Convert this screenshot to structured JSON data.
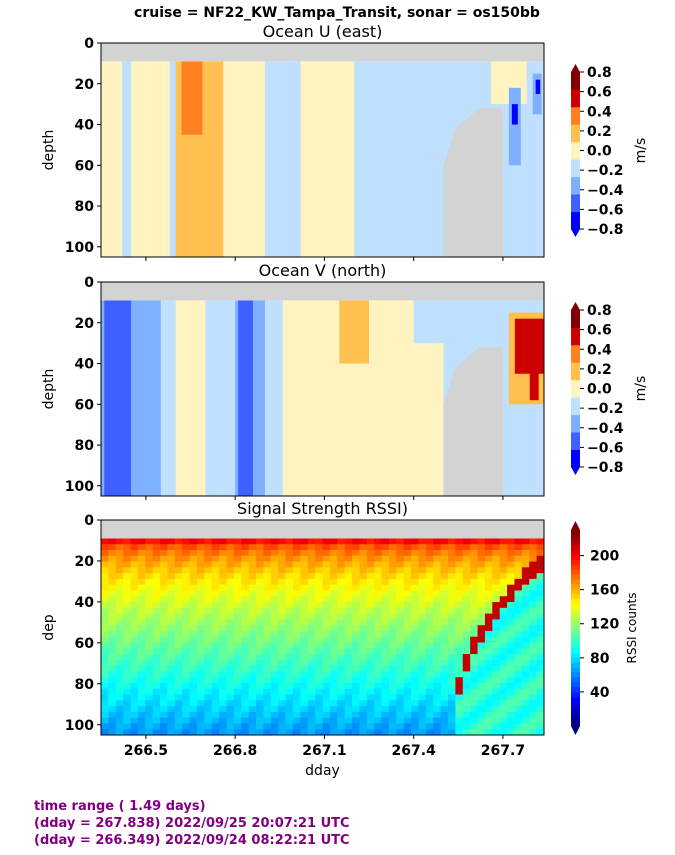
{
  "suptitle": "cruise = NF22_KW_Tampa_Transit,  sonar = os150bb",
  "footer": {
    "line1": "time range ( 1.49 days)",
    "line2": "(dday = 267.838) 2022/09/25 20:07:21 UTC",
    "line3": "(dday = 266.349) 2022/09/24 08:22:21 UTC"
  },
  "colors": {
    "footer_text": "#800080",
    "nodata": "#d3d3d3",
    "vel_levels": [
      "#0000ff",
      "#3f5fff",
      "#7fb0ff",
      "#bfe0ff",
      "#fff3c0",
      "#ffc050",
      "#ff8020",
      "#cc0000",
      "#800000"
    ]
  },
  "chart_data": [
    {
      "type": "heatmap",
      "title": "Ocean U (east)",
      "xlabel": "",
      "ylabel": "depth",
      "xlim": [
        266.349,
        267.838
      ],
      "ylim": [
        105,
        0
      ],
      "yticks": [
        "0",
        "20",
        "40",
        "60",
        "80",
        "100"
      ],
      "xticks": [
        266.5,
        266.8,
        267.1,
        267.4,
        267.7
      ],
      "colorbar": {
        "label": "m/s",
        "ticks": [
          "0.8",
          "0.6",
          "0.4",
          "0.2",
          "0.0",
          "−0.2",
          "−0.4",
          "−0.6",
          "−0.8"
        ],
        "range": [
          -0.8,
          0.8
        ]
      },
      "nodata_top_depth": 9,
      "nodata_region": {
        "start_dday": 267.5,
        "start_depth": 60,
        "end_depth": 32
      },
      "bands": [
        {
          "x0": 266.349,
          "x1": 266.42,
          "value": 0.1
        },
        {
          "x0": 266.42,
          "x1": 266.45,
          "value": -0.1
        },
        {
          "x0": 266.45,
          "x1": 266.58,
          "value": 0.1
        },
        {
          "x0": 266.58,
          "x1": 266.63,
          "value": -0.1
        },
        {
          "x0": 266.63,
          "x1": 266.7,
          "value": 0.1
        },
        {
          "x0": 266.7,
          "x1": 266.76,
          "value": 0.3
        },
        {
          "x0": 266.76,
          "x1": 266.9,
          "value": 0.1
        },
        {
          "x0": 266.9,
          "x1": 267.02,
          "value": -0.1
        },
        {
          "x0": 267.02,
          "x1": 267.2,
          "value": 0.1
        },
        {
          "x0": 267.2,
          "x1": 267.5,
          "value": -0.1
        },
        {
          "x0": 267.5,
          "x1": 267.838,
          "value": -0.1
        }
      ],
      "patches": [
        {
          "x0": 266.6,
          "x1": 266.73,
          "d0": 9,
          "d1": 105,
          "value": 0.3
        },
        {
          "x0": 266.62,
          "x1": 266.69,
          "d0": 9,
          "d1": 45,
          "value": 0.5
        },
        {
          "x0": 267.66,
          "x1": 267.78,
          "d0": 9,
          "d1": 30,
          "value": 0.1
        },
        {
          "x0": 267.72,
          "x1": 267.76,
          "d0": 22,
          "d1": 60,
          "value": -0.3
        },
        {
          "x0": 267.73,
          "x1": 267.75,
          "d0": 30,
          "d1": 40,
          "value": -0.7
        },
        {
          "x0": 267.8,
          "x1": 267.83,
          "d0": 15,
          "d1": 35,
          "value": -0.3
        },
        {
          "x0": 267.81,
          "x1": 267.825,
          "d0": 18,
          "d1": 25,
          "value": -0.7
        }
      ]
    },
    {
      "type": "heatmap",
      "title": "Ocean V (north)",
      "xlabel": "",
      "ylabel": "depth",
      "xlim": [
        266.349,
        267.838
      ],
      "ylim": [
        105,
        0
      ],
      "yticks": [
        "0",
        "20",
        "40",
        "60",
        "80",
        "100"
      ],
      "xticks": [
        266.5,
        266.8,
        267.1,
        267.4,
        267.7
      ],
      "colorbar": {
        "label": "m/s",
        "ticks": [
          "0.8",
          "0.6",
          "0.4",
          "0.2",
          "0.0",
          "−0.2",
          "−0.4",
          "−0.6",
          "−0.8"
        ],
        "range": [
          -0.8,
          0.8
        ]
      },
      "nodata_top_depth": 9,
      "nodata_region": {
        "start_dday": 267.5,
        "start_depth": 60,
        "end_depth": 32
      },
      "bands": [
        {
          "x0": 266.349,
          "x1": 266.36,
          "value": -0.3
        },
        {
          "x0": 266.36,
          "x1": 266.45,
          "value": -0.5
        },
        {
          "x0": 266.45,
          "x1": 266.55,
          "value": -0.3
        },
        {
          "x0": 266.55,
          "x1": 266.6,
          "value": -0.1
        },
        {
          "x0": 266.6,
          "x1": 266.7,
          "value": 0.1
        },
        {
          "x0": 266.7,
          "x1": 266.8,
          "value": -0.1
        },
        {
          "x0": 266.8,
          "x1": 266.9,
          "value": -0.3
        },
        {
          "x0": 266.9,
          "x1": 266.96,
          "value": -0.1
        },
        {
          "x0": 266.96,
          "x1": 267.5,
          "value": 0.1
        },
        {
          "x0": 267.5,
          "x1": 267.838,
          "value": -0.1
        }
      ],
      "patches": [
        {
          "x0": 266.81,
          "x1": 266.86,
          "d0": 9,
          "d1": 105,
          "value": -0.5
        },
        {
          "x0": 267.15,
          "x1": 267.25,
          "d0": 9,
          "d1": 40,
          "value": 0.3
        },
        {
          "x0": 267.4,
          "x1": 267.5,
          "d0": 9,
          "d1": 30,
          "value": -0.1
        },
        {
          "x0": 267.72,
          "x1": 267.838,
          "d0": 15,
          "d1": 60,
          "value": 0.3
        },
        {
          "x0": 267.74,
          "x1": 267.838,
          "d0": 18,
          "d1": 45,
          "value": 0.7
        },
        {
          "x0": 267.79,
          "x1": 267.82,
          "d0": 40,
          "d1": 58,
          "value": 0.7
        }
      ]
    },
    {
      "type": "heatmap",
      "title": "Signal Strength RSSI)",
      "xlabel": "dday",
      "ylabel": "dep",
      "xlim": [
        266.349,
        267.838
      ],
      "ylim": [
        105,
        0
      ],
      "yticks": [
        "0",
        "20",
        "40",
        "60",
        "80",
        "100"
      ],
      "xticks": [
        266.5,
        266.8,
        267.1,
        267.4,
        267.7
      ],
      "xticklabels": [
        "266.5",
        "266.8",
        "267.1",
        "267.4",
        "267.7"
      ],
      "colorbar": {
        "label": "RSSI counts",
        "ticks": [
          "200",
          "160",
          "120",
          "80",
          "40"
        ],
        "range": [
          0,
          230
        ]
      },
      "nodata_top_depth": 9,
      "surface_value": 200,
      "bottom_value": 75,
      "bottom_echo": {
        "start_dday": 267.52,
        "start_depth": 100,
        "end_depth": 16,
        "value": 215
      }
    }
  ]
}
